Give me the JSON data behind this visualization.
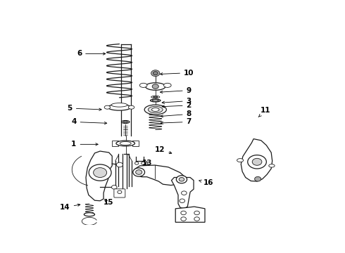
{
  "background_color": "#ffffff",
  "fig_width": 4.9,
  "fig_height": 3.6,
  "dpi": 100,
  "line_color": "#1a1a1a",
  "label_fontsize": 7.5,
  "label_fontweight": "bold",
  "label_color": "#000000",
  "label_defs": {
    "1": {
      "lp": [
        0.115,
        0.415
      ],
      "pp": [
        0.215,
        0.415
      ]
    },
    "2": {
      "lp": [
        0.545,
        0.615
      ],
      "pp": [
        0.435,
        0.608
      ]
    },
    "3": {
      "lp": [
        0.545,
        0.638
      ],
      "pp": [
        0.435,
        0.628
      ]
    },
    "4": {
      "lp": [
        0.115,
        0.53
      ],
      "pp": [
        0.248,
        0.523
      ]
    },
    "5": {
      "lp": [
        0.1,
        0.6
      ],
      "pp": [
        0.228,
        0.593
      ]
    },
    "6": {
      "lp": [
        0.135,
        0.88
      ],
      "pp": [
        0.243,
        0.88
      ]
    },
    "7": {
      "lp": [
        0.545,
        0.53
      ],
      "pp": [
        0.43,
        0.524
      ]
    },
    "8": {
      "lp": [
        0.545,
        0.57
      ],
      "pp": [
        0.43,
        0.558
      ]
    },
    "9": {
      "lp": [
        0.545,
        0.692
      ],
      "pp": [
        0.428,
        0.682
      ]
    },
    "10": {
      "lp": [
        0.545,
        0.782
      ],
      "pp": [
        0.428,
        0.775
      ]
    },
    "11": {
      "lp": [
        0.832,
        0.59
      ],
      "pp": [
        0.8,
        0.548
      ]
    },
    "12": {
      "lp": [
        0.437,
        0.388
      ],
      "pp": [
        0.49,
        0.365
      ]
    },
    "13": {
      "lp": [
        0.388,
        0.318
      ],
      "pp": [
        0.388,
        0.34
      ]
    },
    "14": {
      "lp": [
        0.082,
        0.092
      ],
      "pp": [
        0.148,
        0.108
      ]
    },
    "15": {
      "lp": [
        0.244,
        0.118
      ],
      "pp": [
        0.222,
        0.13
      ]
    },
    "16": {
      "lp": [
        0.618,
        0.218
      ],
      "pp": [
        0.574,
        0.232
      ]
    }
  }
}
